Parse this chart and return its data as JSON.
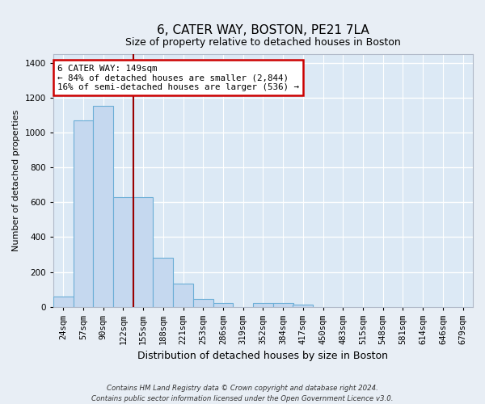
{
  "title": "6, CATER WAY, BOSTON, PE21 7LA",
  "subtitle": "Size of property relative to detached houses in Boston",
  "xlabel": "Distribution of detached houses by size in Boston",
  "ylabel": "Number of detached properties",
  "categories": [
    "24sqm",
    "57sqm",
    "90sqm",
    "122sqm",
    "155sqm",
    "188sqm",
    "221sqm",
    "253sqm",
    "286sqm",
    "319sqm",
    "352sqm",
    "384sqm",
    "417sqm",
    "450sqm",
    "483sqm",
    "515sqm",
    "548sqm",
    "581sqm",
    "614sqm",
    "646sqm",
    "679sqm"
  ],
  "values": [
    60,
    1070,
    1155,
    630,
    630,
    280,
    135,
    45,
    20,
    0,
    20,
    20,
    10,
    0,
    0,
    0,
    0,
    0,
    0,
    0,
    0
  ],
  "bar_color": "#c5d8ef",
  "bar_edge_color": "#6baed6",
  "vline_color": "#990000",
  "vline_index": 4,
  "annotation_text": "6 CATER WAY: 149sqm\n← 84% of detached houses are smaller (2,844)\n16% of semi-detached houses are larger (536) →",
  "annotation_box_facecolor": "#ffffff",
  "annotation_box_edgecolor": "#cc0000",
  "ylim": [
    0,
    1450
  ],
  "yticks": [
    0,
    200,
    400,
    600,
    800,
    1000,
    1200,
    1400
  ],
  "ax_facecolor": "#dce9f5",
  "fig_facecolor": "#e8eef5",
  "grid_color": "#ffffff",
  "title_fontsize": 11,
  "subtitle_fontsize": 9,
  "ylabel_fontsize": 8,
  "xlabel_fontsize": 9,
  "tick_fontsize": 7.5,
  "footer_line1": "Contains HM Land Registry data © Crown copyright and database right 2024.",
  "footer_line2": "Contains public sector information licensed under the Open Government Licence v3.0."
}
